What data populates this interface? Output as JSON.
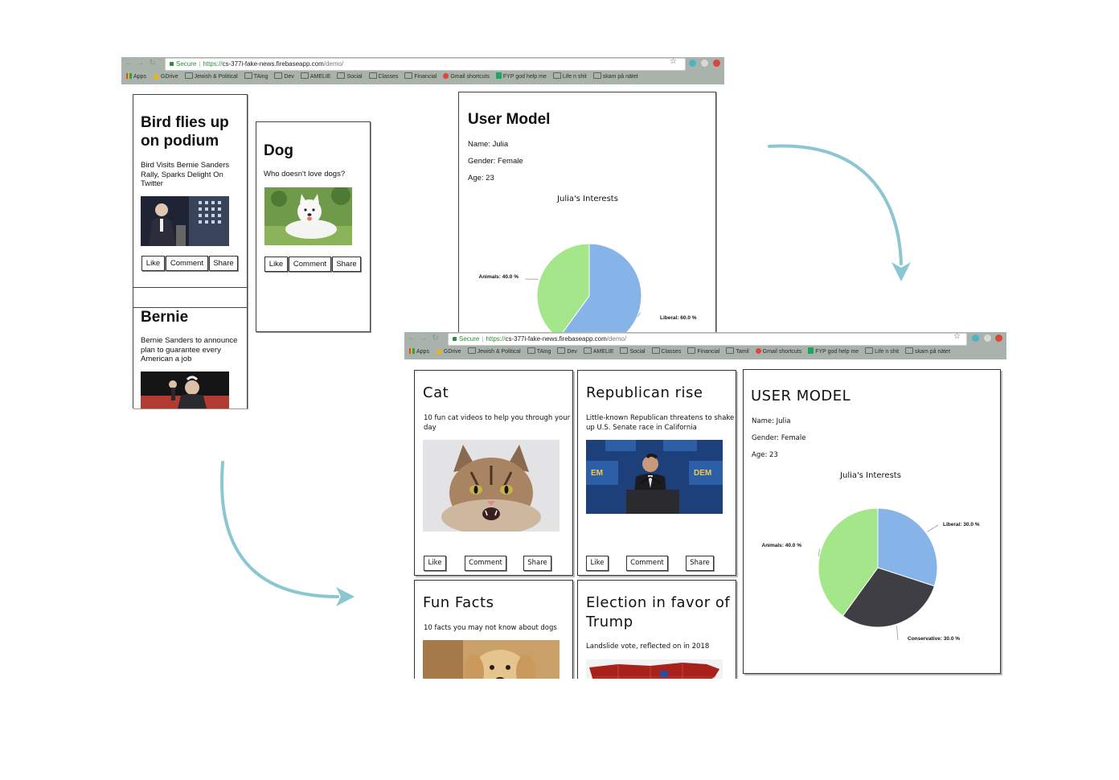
{
  "browser": {
    "secure_label": "Secure",
    "url_scheme": "https://",
    "url_host": "cs-377i-fake-news.firebaseapp.com",
    "url_path": "/demo/",
    "bookmarks_old": [
      "Apps",
      "GDrive",
      "Jewish & Political",
      "TAing",
      "Dev",
      "AMELIE",
      "Social",
      "Classes",
      "Financial",
      "Gmail shortcuts",
      "FYP god help me",
      "Life n shit",
      "skam på nätet"
    ],
    "bookmarks_new": [
      "Apps",
      "GDrive",
      "Jewish & Political",
      "TAing",
      "Dev",
      "AMELIE",
      "Social",
      "Classes",
      "Financial",
      "Tamil",
      "Gmail shortcuts",
      "FYP god help me",
      "Life n shit",
      "skam på nätet"
    ]
  },
  "buttons": {
    "like": "Like",
    "comment": "Comment",
    "share": "Share"
  },
  "wireframe": {
    "cards": [
      {
        "title": "Bird flies up on podium",
        "text": "Bird Visits Bernie Sanders Rally, Sparks Delight On Twitter",
        "image": "bernie-speech-photo"
      },
      {
        "title": "Dog",
        "text": "Who doesn't love dogs?",
        "image": "white-dog-photo"
      },
      {
        "title": "Bernie",
        "text": "Bernie Sanders to announce plan to guarantee every American a job",
        "image": "bernie-fist-photo"
      }
    ],
    "user_model": {
      "title": "User Model",
      "name": "Name: Julia",
      "gender": "Gender: Female",
      "age": "Age: 23",
      "chart_title": "Julia's Interests"
    }
  },
  "final": {
    "cards": [
      {
        "title": "Cat",
        "text": "10 fun cat videos to help you through your day",
        "image": "cat-photo"
      },
      {
        "title": "Republican rise",
        "text": "Little-known Republican threatens to shake up U.S. Senate race in California",
        "image": "politician-podium-photo"
      },
      {
        "title": "Fun Facts",
        "text": "10 facts you may not know about dogs",
        "image": "golden-dog-photo"
      },
      {
        "title": "Election in favor of Trump",
        "text": "Landslide vote, reflected on in 2018",
        "image": "us-map-photo"
      }
    ],
    "user_model": {
      "title": "USER MODEL",
      "name": "Name: Julia",
      "gender": "Gender: Female",
      "age": "Age: 23",
      "chart_title": "Julia's Interests"
    }
  },
  "chart_data": [
    {
      "type": "pie",
      "title": "Julia's Interests",
      "categories": [
        "Liberal",
        "Animals"
      ],
      "values": [
        60.0,
        40.0
      ],
      "labels": [
        "Liberal: 60.0 %",
        "Animals: 40.0 %"
      ],
      "colors": [
        "#86b3e8",
        "#a4e68a"
      ]
    },
    {
      "type": "pie",
      "title": "Julia's Interests",
      "categories": [
        "Liberal",
        "Conservative",
        "Animals"
      ],
      "values": [
        30.0,
        30.0,
        40.0
      ],
      "labels": [
        "Liberal: 30.0 %",
        "Conservative: 30.0 %",
        "Animals: 40.0 %"
      ],
      "colors": [
        "#86b3e8",
        "#3e3e44",
        "#a4e68a"
      ]
    }
  ],
  "arrow_color": "#8cc6d2"
}
